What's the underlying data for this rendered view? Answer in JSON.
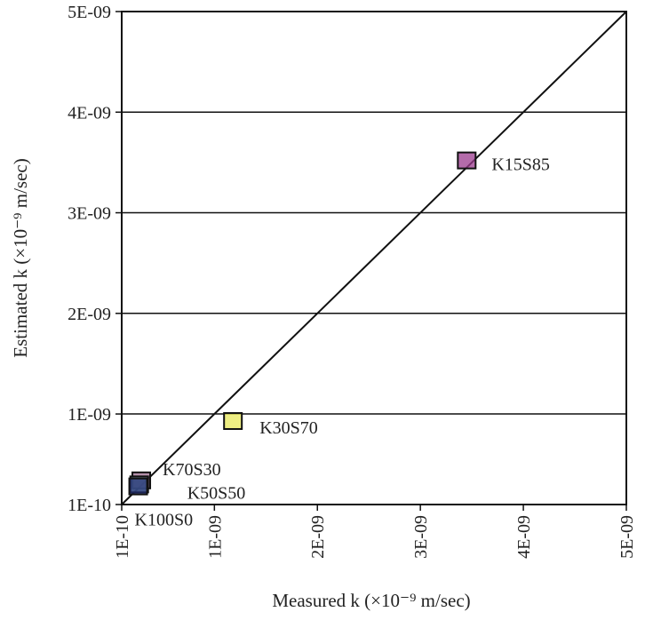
{
  "chart_data": {
    "type": "scatter",
    "title": "",
    "xlabel": "Measured k (×10⁻⁹ m/sec)",
    "ylabel": "Estimated k (×10⁻⁹ m/sec)",
    "xlim": [
      1e-10,
      5e-09
    ],
    "ylim": [
      1e-10,
      5e-09
    ],
    "grid": "horizontal",
    "x_ticks": [
      {
        "value": 1e-10,
        "label": "1E-10"
      },
      {
        "value": 1e-09,
        "label": "1E-09"
      },
      {
        "value": 2e-09,
        "label": "2E-09"
      },
      {
        "value": 3e-09,
        "label": "3E-09"
      },
      {
        "value": 4e-09,
        "label": "4E-09"
      },
      {
        "value": 5e-09,
        "label": "5E-09"
      }
    ],
    "y_ticks": [
      {
        "value": 1e-10,
        "label": "1E-10"
      },
      {
        "value": 1e-09,
        "label": "1E-09"
      },
      {
        "value": 2e-09,
        "label": "2E-09"
      },
      {
        "value": 3e-09,
        "label": "3E-09"
      },
      {
        "value": 4e-09,
        "label": "4E-09"
      },
      {
        "value": 5e-09,
        "label": "5E-09"
      }
    ],
    "reference_line": {
      "type": "1:1",
      "from": [
        1e-10,
        1e-10
      ],
      "to": [
        5e-09,
        5e-09
      ]
    },
    "points": [
      {
        "label": "K15S85",
        "x": 3.45e-09,
        "y": 3.52e-09,
        "color": "#9b3a8e"
      },
      {
        "label": "K30S70",
        "x": 1.18e-09,
        "y": 9.3e-10,
        "color": "#e8e85a"
      },
      {
        "label": "K70S30",
        "x": 2.9e-10,
        "y": 3.4e-10,
        "color": "#9a6a8c"
      },
      {
        "label": "K50S50",
        "x": 2.7e-10,
        "y": 3e-10,
        "color": "#8fc4d6"
      },
      {
        "label": "K100S0",
        "x": 2.6e-10,
        "y": 2.8e-10,
        "color": "#1f2a6b"
      }
    ]
  }
}
